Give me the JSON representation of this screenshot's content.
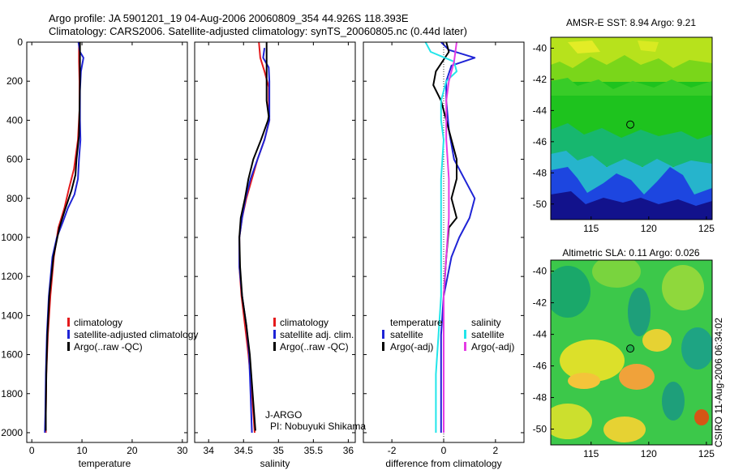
{
  "title_line1": "Argo profile: JA 5901201_19 04-Aug-2006 20060809_354 44.926S 118.393E",
  "title_line2": "Climatology: CARS2006. Satellite-adjusted climatology: synTS_20060805.nc (0.44d later)",
  "side_label": "CSIRO 11-Aug-2006 06:34:02",
  "colors": {
    "red": "#e41a1c",
    "blue": "#1f24d6",
    "black": "#000000",
    "cyan": "#22e5ea",
    "magenta": "#e43be4"
  },
  "chart_data": [
    {
      "id": "temperature",
      "type": "line",
      "xlabel": "temperature",
      "ylabel": "",
      "xlim": [
        -1,
        31
      ],
      "ylim": [
        2050,
        0
      ],
      "xticks": [
        "0",
        "10",
        "20",
        "30"
      ],
      "yticks": [
        "0",
        "200",
        "400",
        "600",
        "800",
        "1000",
        "1200",
        "1400",
        "1600",
        "1800",
        "2000"
      ],
      "legend": {
        "entries": [
          "climatology",
          "satellite-adjusted climatology",
          "Argo(..raw -QC)"
        ]
      },
      "series": [
        {
          "name": "climatology",
          "color": "red",
          "points": [
            [
              9.4,
              0
            ],
            [
              9.4,
              100
            ],
            [
              9.5,
              200
            ],
            [
              9.5,
              350
            ],
            [
              9.2,
              500
            ],
            [
              8.4,
              650
            ],
            [
              7.4,
              750
            ],
            [
              6.5,
              850
            ],
            [
              5.3,
              950
            ],
            [
              4.4,
              1100
            ],
            [
              3.7,
              1300
            ],
            [
              3.2,
              1500
            ],
            [
              2.9,
              1700
            ],
            [
              2.8,
              1900
            ],
            [
              2.8,
              2000
            ]
          ]
        },
        {
          "name": "satellite-adjusted climatology",
          "color": "blue",
          "points": [
            [
              9.3,
              0
            ],
            [
              9.6,
              50
            ],
            [
              10.3,
              80
            ],
            [
              9.8,
              150
            ],
            [
              9.6,
              250
            ],
            [
              9.6,
              400
            ],
            [
              9.7,
              500
            ],
            [
              9.4,
              600
            ],
            [
              9.2,
              700
            ],
            [
              8.5,
              780
            ],
            [
              7.2,
              850
            ],
            [
              6.2,
              920
            ],
            [
              5.0,
              1000
            ],
            [
              4.1,
              1100
            ],
            [
              3.4,
              1300
            ],
            [
              3.0,
              1500
            ],
            [
              2.8,
              1700
            ],
            [
              2.7,
              1900
            ],
            [
              2.6,
              2000
            ]
          ]
        },
        {
          "name": "Argo(..raw -QC)",
          "color": "black",
          "points": [
            [
              9.6,
              0
            ],
            [
              9.6,
              200
            ],
            [
              9.5,
              350
            ],
            [
              9.4,
              480
            ],
            [
              8.9,
              600
            ],
            [
              8.7,
              680
            ],
            [
              7.9,
              760
            ],
            [
              6.6,
              860
            ],
            [
              5.5,
              950
            ],
            [
              4.3,
              1100
            ],
            [
              3.5,
              1300
            ],
            [
              3.1,
              1500
            ],
            [
              2.9,
              1700
            ],
            [
              2.8,
              1900
            ],
            [
              2.8,
              1990
            ]
          ]
        }
      ]
    },
    {
      "id": "salinity",
      "type": "line",
      "xlabel": "salinity",
      "ylabel": "",
      "xlim": [
        33.8,
        36.1
      ],
      "ylim": [
        2050,
        0
      ],
      "xticks": [
        "34",
        "34.5",
        "35",
        "35.5",
        "36"
      ],
      "legend": {
        "entries": [
          "climatology",
          "satellite adj. clim.",
          "Argo(..raw -QC)"
        ]
      },
      "annotation": [
        "J-ARGO",
        "PI: Nobuyuki Shikama"
      ],
      "series": [
        {
          "name": "climatology",
          "color": "red",
          "points": [
            [
              34.72,
              0
            ],
            [
              34.74,
              80
            ],
            [
              34.8,
              150
            ],
            [
              34.86,
              230
            ],
            [
              34.86,
              300
            ],
            [
              34.87,
              400
            ],
            [
              34.8,
              500
            ],
            [
              34.7,
              600
            ],
            [
              34.62,
              700
            ],
            [
              34.54,
              800
            ],
            [
              34.48,
              900
            ],
            [
              34.44,
              1000
            ],
            [
              34.44,
              1150
            ],
            [
              34.47,
              1300
            ],
            [
              34.52,
              1450
            ],
            [
              34.57,
              1600
            ],
            [
              34.62,
              1800
            ],
            [
              34.66,
              2000
            ]
          ]
        },
        {
          "name": "satellite adj. clim.",
          "color": "blue",
          "points": [
            [
              34.8,
              30
            ],
            [
              34.78,
              80
            ],
            [
              34.86,
              130
            ],
            [
              34.87,
              200
            ],
            [
              34.87,
              300
            ],
            [
              34.87,
              400
            ],
            [
              34.8,
              500
            ],
            [
              34.7,
              600
            ],
            [
              34.6,
              700
            ],
            [
              34.53,
              800
            ],
            [
              34.48,
              900
            ],
            [
              34.44,
              1000
            ],
            [
              34.44,
              1150
            ],
            [
              34.48,
              1300
            ],
            [
              34.54,
              1450
            ],
            [
              34.58,
              1600
            ],
            [
              34.6,
              1800
            ],
            [
              34.62,
              2000
            ]
          ]
        },
        {
          "name": "Argo(..raw -QC)",
          "color": "black",
          "points": [
            [
              34.83,
              0
            ],
            [
              34.83,
              150
            ],
            [
              34.83,
              200
            ],
            [
              34.83,
              300
            ],
            [
              34.86,
              380
            ],
            [
              34.85,
              400
            ],
            [
              34.75,
              500
            ],
            [
              34.64,
              600
            ],
            [
              34.57,
              700
            ],
            [
              34.52,
              800
            ],
            [
              34.46,
              900
            ],
            [
              34.44,
              1000
            ],
            [
              34.45,
              1150
            ],
            [
              34.48,
              1300
            ],
            [
              34.54,
              1450
            ],
            [
              34.59,
              1600
            ],
            [
              34.63,
              1800
            ],
            [
              34.67,
              1990
            ]
          ]
        }
      ]
    },
    {
      "id": "difference",
      "type": "line",
      "xlabel": "difference from climatology",
      "ylabel": "",
      "xlim": [
        -3.1,
        3.1
      ],
      "ylim": [
        2050,
        0
      ],
      "xticks": [
        "-2",
        "0",
        "2"
      ],
      "legend": {
        "headers": [
          "temperature",
          "salinity"
        ],
        "entries": [
          "satellite",
          "Argo(-adj)",
          "satellite",
          "Argo(-adj)"
        ]
      },
      "series": [
        {
          "name": "temperature satellite",
          "color": "blue",
          "points": [
            [
              -0.1,
              0
            ],
            [
              0.2,
              40
            ],
            [
              1.2,
              80
            ],
            [
              0.3,
              120
            ],
            [
              0.1,
              200
            ],
            [
              0.1,
              300
            ],
            [
              0.2,
              450
            ],
            [
              0.4,
              600
            ],
            [
              0.8,
              700
            ],
            [
              1.2,
              800
            ],
            [
              1.0,
              900
            ],
            [
              0.6,
              1000
            ],
            [
              0.3,
              1100
            ],
            [
              0.0,
              1300
            ],
            [
              -0.1,
              1500
            ],
            [
              -0.1,
              1700
            ],
            [
              -0.1,
              2000
            ]
          ]
        },
        {
          "name": "temperature Argo(-adj)",
          "color": "black",
          "points": [
            [
              0.1,
              0
            ],
            [
              0.2,
              50
            ],
            [
              -0.3,
              150
            ],
            [
              -0.4,
              220
            ],
            [
              -0.1,
              300
            ],
            [
              0.1,
              400
            ],
            [
              0.3,
              500
            ],
            [
              0.5,
              600
            ],
            [
              0.5,
              700
            ],
            [
              0.3,
              800
            ],
            [
              0.5,
              900
            ],
            [
              0.2,
              950
            ],
            [
              0.1,
              1100
            ],
            [
              0.0,
              1300
            ],
            [
              0.0,
              1500
            ],
            [
              0.0,
              1700
            ],
            [
              0.0,
              2000
            ]
          ]
        },
        {
          "name": "salinity satellite",
          "color": "cyan",
          "points": [
            [
              -0.7,
              0
            ],
            [
              -0.5,
              50
            ],
            [
              0.4,
              100
            ],
            [
              0.5,
              150
            ],
            [
              0.1,
              200
            ],
            [
              -0.1,
              300
            ],
            [
              -0.1,
              400
            ],
            [
              0.0,
              500
            ],
            [
              -0.1,
              700
            ],
            [
              -0.1,
              900
            ],
            [
              -0.1,
              1100
            ],
            [
              -0.1,
              1300
            ],
            [
              -0.2,
              1500
            ],
            [
              -0.3,
              1700
            ],
            [
              -0.3,
              2000
            ]
          ]
        },
        {
          "name": "salinity Argo(-adj)",
          "color": "magenta",
          "points": [
            [
              0.5,
              0
            ],
            [
              0.4,
              100
            ],
            [
              0.2,
              200
            ],
            [
              0.1,
              300
            ],
            [
              0.1,
              500
            ],
            [
              0.2,
              700
            ],
            [
              0.2,
              900
            ],
            [
              0.1,
              1100
            ],
            [
              0.0,
              1300
            ],
            [
              0.0,
              1500
            ],
            [
              0.0,
              1700
            ],
            [
              0.0,
              2000
            ]
          ]
        }
      ]
    },
    {
      "id": "sst_map",
      "type": "heatmap",
      "title": "AMSR-E SST: 8.94 Argo: 9.21",
      "xlim": [
        111.5,
        125.5
      ],
      "ylim": [
        -51,
        -39.3
      ],
      "xticks": [
        "115",
        "120",
        "125"
      ],
      "yticks": [
        "-40",
        "-42",
        "-44",
        "-46",
        "-48",
        "-50"
      ],
      "marker": {
        "lon": 118.4,
        "lat": -44.9
      }
    },
    {
      "id": "sla_map",
      "type": "heatmap",
      "title": "Altimetric SLA: 0.11 Argo: 0.026",
      "xlim": [
        111.5,
        125.5
      ],
      "ylim": [
        -51,
        -39.3
      ],
      "xticks": [
        "115",
        "120",
        "125"
      ],
      "yticks": [
        "-40",
        "-42",
        "-44",
        "-46",
        "-48",
        "-50"
      ],
      "marker": {
        "lon": 118.4,
        "lat": -44.9
      }
    }
  ]
}
